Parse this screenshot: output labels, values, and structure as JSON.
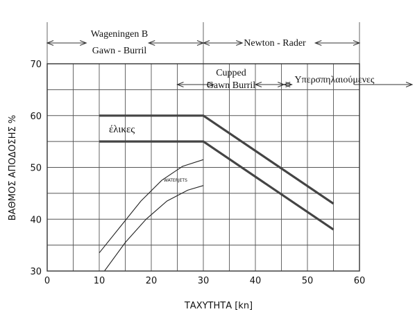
{
  "chart_data": {
    "type": "line",
    "xlabel": "ΤΑΧΥΤΗΤΑ [kn]",
    "ylabel": "ΒΑΘΜΟΣ ΑΠΟΔΟΣΗΣ %",
    "xlim": [
      0,
      60
    ],
    "ylim": [
      30,
      70
    ],
    "x_ticks": [
      "0",
      "10",
      "20",
      "30",
      "40",
      "50",
      "60"
    ],
    "y_ticks": [
      "30",
      "40",
      "50",
      "60",
      "70"
    ],
    "grid": true,
    "region_labels": {
      "wageningen_1": "Wageningen B",
      "wageningen_2": "Gawn - Burril",
      "newton": "Newton - Rader",
      "cupped_1": "Cupped",
      "cupped_2": "Gawn Burril",
      "super": "Υπερσπηλαιούμενες"
    },
    "series_labels": {
      "propellers": "έλικες",
      "waterjets": "WATERJETS"
    },
    "series": [
      {
        "points": [
          [
            10,
            60
          ],
          [
            30,
            60
          ],
          [
            55,
            43
          ]
        ],
        "style": "thick"
      },
      {
        "points": [
          [
            10,
            55
          ],
          [
            30,
            55
          ],
          [
            55,
            38
          ]
        ],
        "style": "thick"
      },
      {
        "points": [
          [
            10,
            33.5
          ],
          [
            14,
            38.5
          ],
          [
            18,
            43.5
          ],
          [
            22,
            47.5
          ],
          [
            26,
            50.2
          ],
          [
            30,
            51.5
          ]
        ],
        "style": "thin"
      },
      {
        "points": [
          [
            11,
            30
          ],
          [
            15,
            35.5
          ],
          [
            19,
            40
          ],
          [
            23,
            43.5
          ],
          [
            27,
            45.6
          ],
          [
            30,
            46.5
          ]
        ],
        "style": "thin"
      }
    ]
  }
}
